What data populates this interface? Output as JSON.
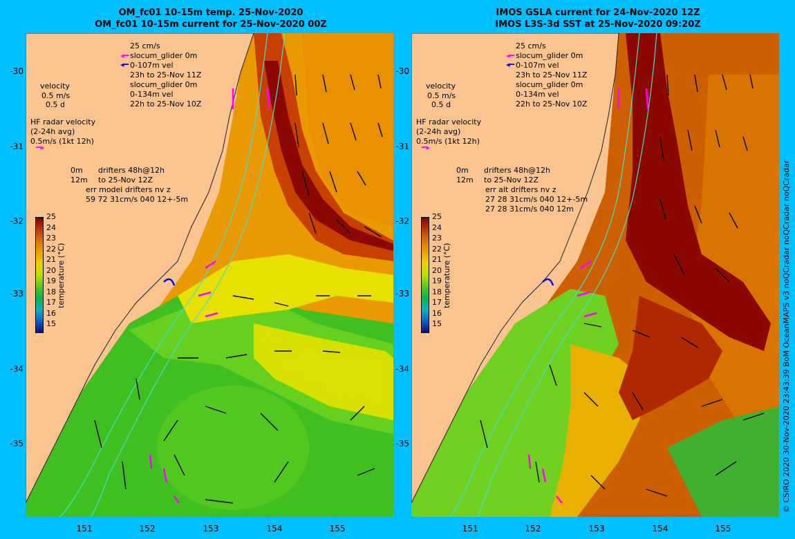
{
  "left_panel": {
    "title_line1": "OM_fc01 10-15m temp. 25-Nov-2020",
    "title_line2": "OM_fc01 10-15m current for 25-Nov-2020 00Z",
    "legend": {
      "scale_line": "25 cm/s",
      "glider1_line": "slocum_glider 0m",
      "glider1_vel": "0-107m vel",
      "glider1_time": "23h to 25-Nov 11Z",
      "glider2_line": "slocum_glider 0m",
      "glider2_vel": "0-134m vel",
      "glider2_time": "22h to 25-Nov 10Z",
      "velocity_label": "velocity",
      "velocity_scale": "0.5 m/s",
      "velocity_days": "0.5 d",
      "hf_radar_line1": "HF radar velocity",
      "hf_radar_line2": "(2-24h avg)",
      "hf_radar_line3": "0.5m/s (1kt 12h)",
      "drifter_line1_depth": "0m",
      "drifter_line1_text": "drifters 48h@12h",
      "drifter_line2_depth": "12m",
      "drifter_line2_text": "to 25-Nov 12Z",
      "err_line1": "err model drifters nv z",
      "err_line2": "59 72 31cm/s 040 12+-5m",
      "err_line3": ""
    }
  },
  "right_panel": {
    "title_line1": "IMOS GSLA current for 24-Nov-2020 12Z",
    "title_line2": "IMOS L3S-3d SST at 25-Nov-2020 09:20Z",
    "legend": {
      "scale_line": "25 cm/s",
      "glider1_line": "slocum_glider 0m",
      "glider1_vel": "0-107m vel",
      "glider1_time": "23h to 25-Nov 11Z",
      "glider2_line": "slocum_glider 0m",
      "glider2_vel": "0-134m vel",
      "glider2_time": "22h to 25-Nov 10Z",
      "velocity_label": "velocity",
      "velocity_scale": "0.5 m/s",
      "velocity_days": "0.5 d",
      "hf_radar_line1": "HF radar velocity",
      "hf_radar_line2": "(2-24h avg)",
      "hf_radar_line3": "0.5m/s (1kt 12h)",
      "drifter_line1_depth": "0m",
      "drifter_line1_text": "drifters 48h@12h",
      "drifter_line2_depth": "12m",
      "drifter_line2_text": "to 25-Nov 12Z",
      "err_line1": "err alt drifters nv z",
      "err_line2": "27 28 31cm/s 040 12+-5m",
      "err_line3": "27 28 31cm/s 040 12m"
    }
  },
  "axes": {
    "lat_labels": [
      "-30",
      "-31",
      "-32",
      "-33",
      "-34",
      "-35"
    ],
    "lon_labels": [
      "151",
      "152",
      "153",
      "154",
      "155"
    ]
  },
  "colorbar": {
    "title": "temperature (°C)",
    "ticks": [
      "25",
      "24",
      "23",
      "22",
      "21",
      "20",
      "19",
      "18",
      "17",
      "16",
      "15"
    ],
    "colors": [
      "#7a0000",
      "#b83a00",
      "#d87400",
      "#e8a000",
      "#f0d000",
      "#b8e000",
      "#50cc20",
      "#10b050",
      "#10b0c0",
      "#1060c8",
      "#101070"
    ]
  },
  "side_credit": "© CSIRO 2020   30-Nov-2020 23:43:39 BoM OceanMAPS v3 noQCradar noQCradar noQCradar",
  "colors": {
    "frame_bg": "#00bfff",
    "land": "#f9c48f",
    "drifter_magenta": "#ff00ff",
    "glider_blue": "#0000ff",
    "isobath_cyan": "#40e0d0"
  }
}
